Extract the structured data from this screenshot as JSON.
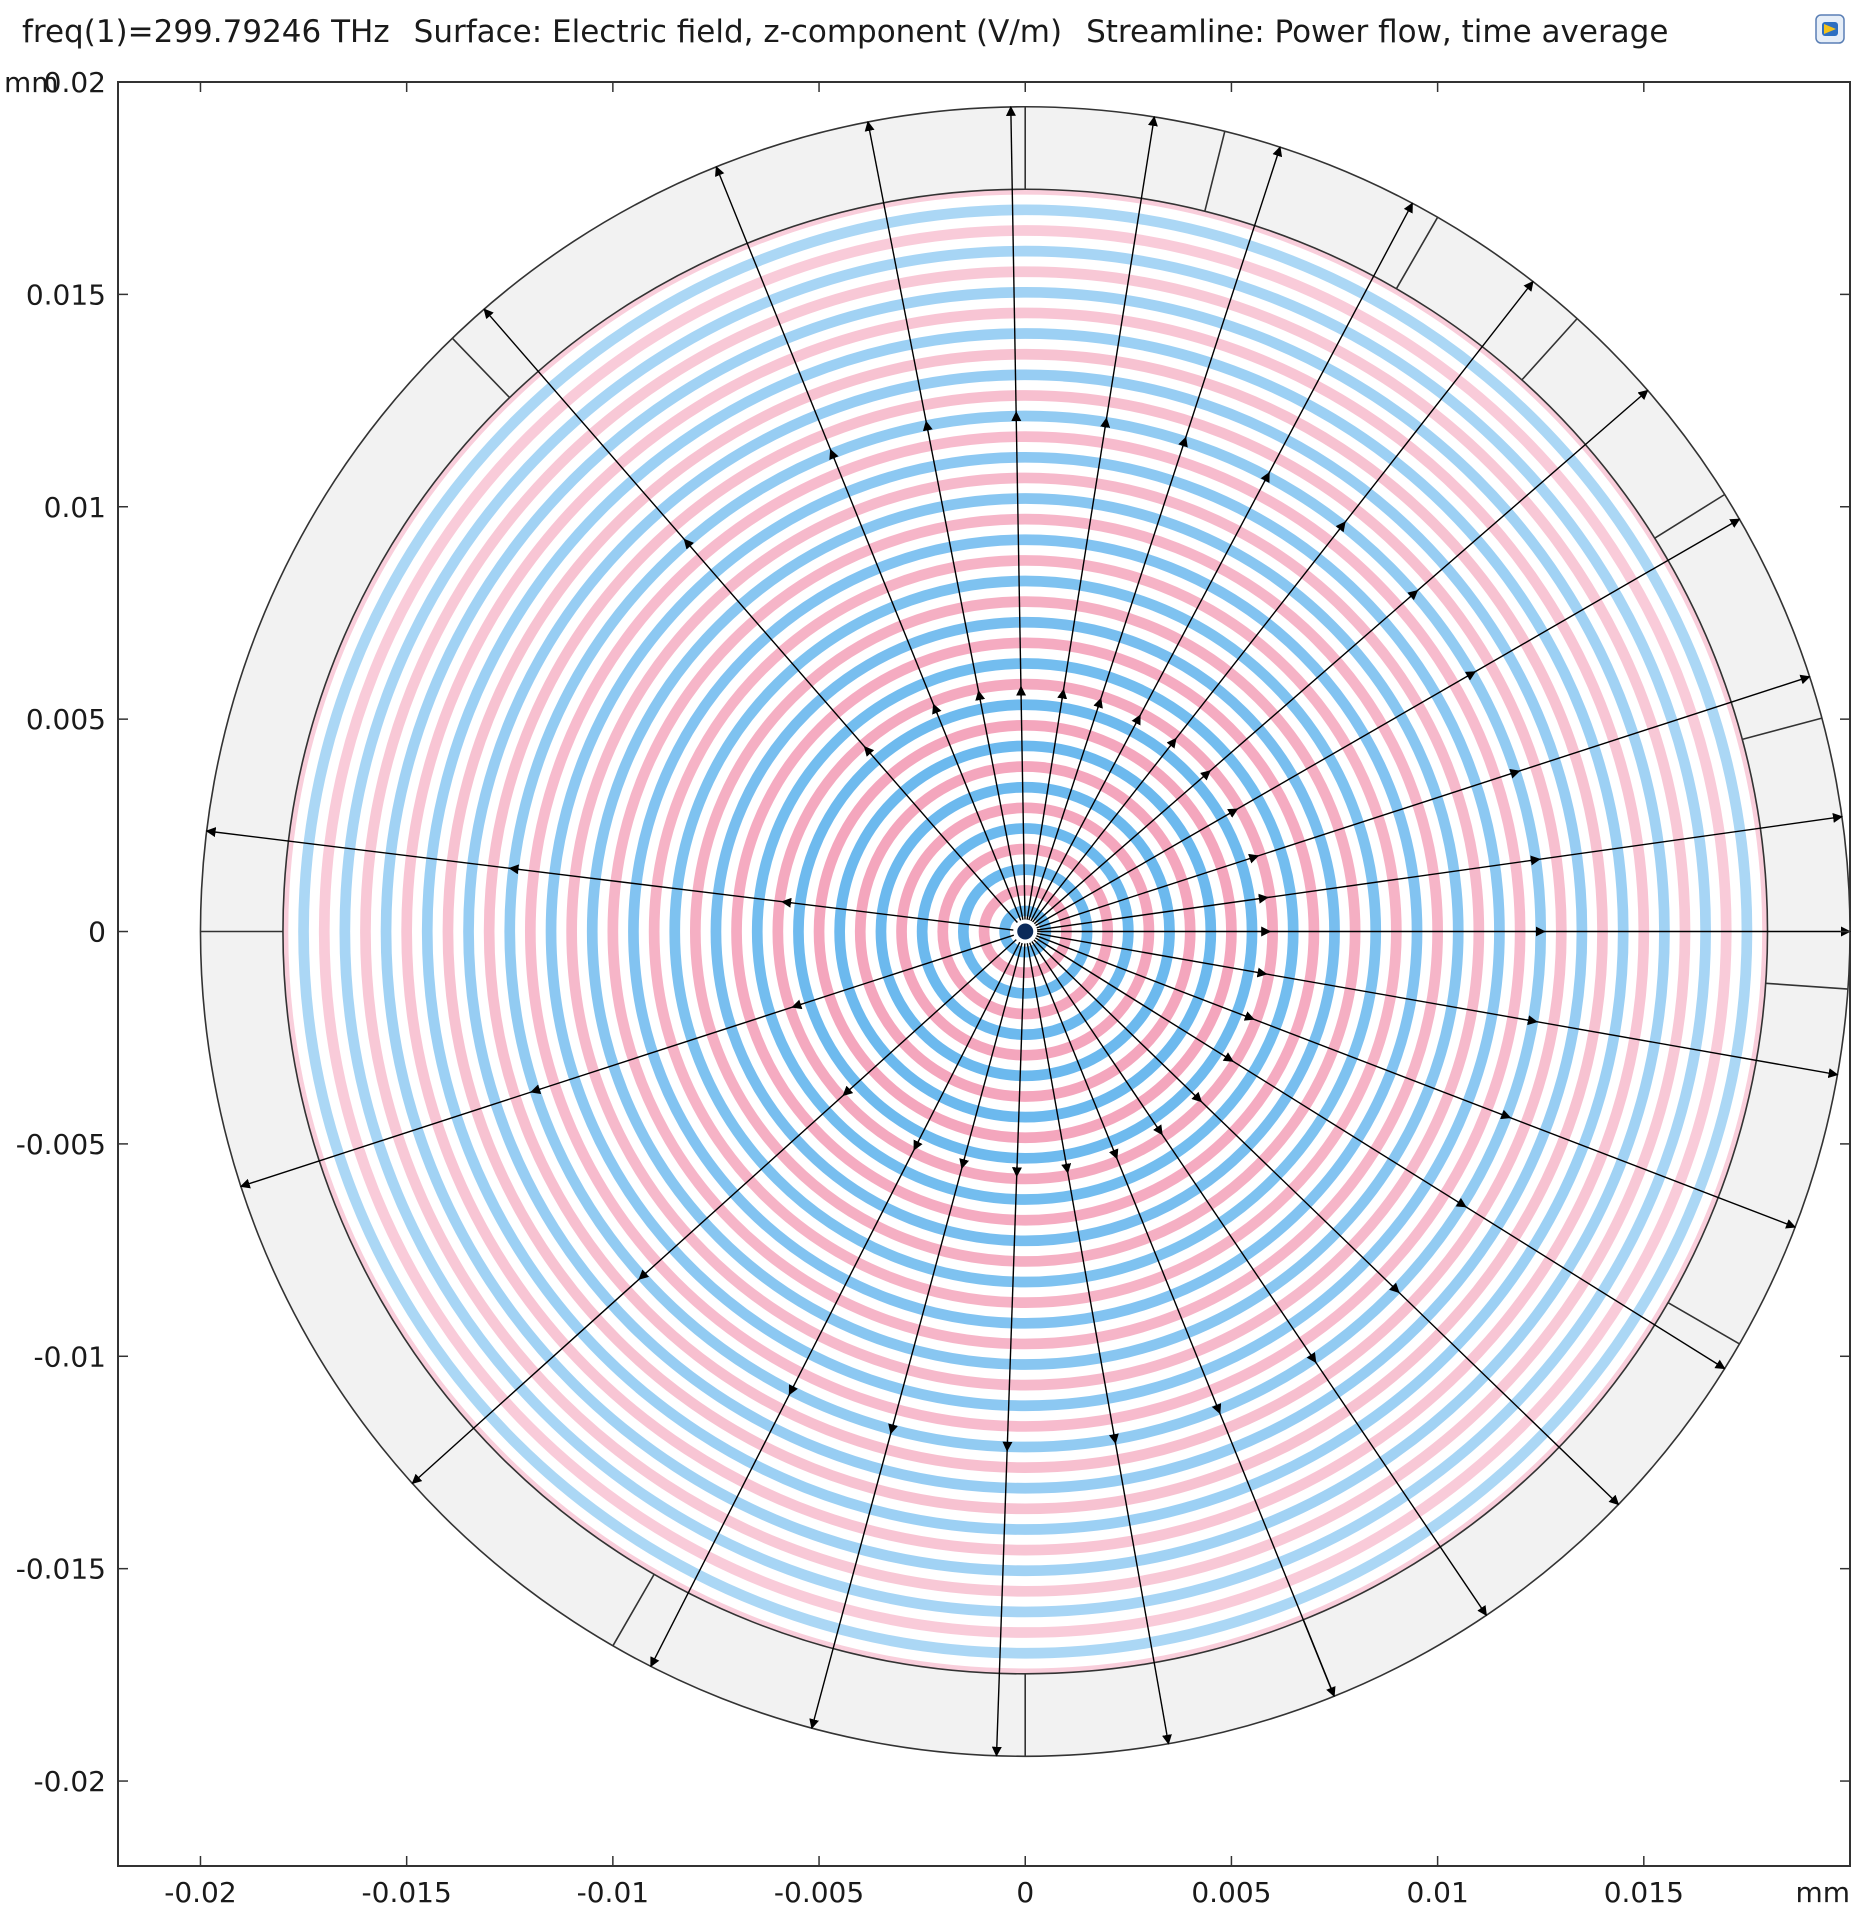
{
  "header": {
    "freq_label": "freq(1)=299.79246 THz",
    "surface_label": "Surface: Electric field, z-component (V/m)",
    "streamline_label": "Streamline: Power flow, time average"
  },
  "icons": {
    "corner": "comsol-plot-icon"
  },
  "colors": {
    "field_positive": "#f4a6bd",
    "field_negative": "#6cb9ee",
    "pml_region": "#f2f2f2",
    "streamline": "#000000",
    "frame": "#333333"
  },
  "chart_data": {
    "type": "heatmap",
    "plot_kind": "surface + streamline",
    "x_unit": "mm",
    "y_unit": "mm",
    "xlim": [
      -0.022,
      0.02
    ],
    "ylim": [
      -0.022,
      0.02
    ],
    "x_ticks": [
      "-0.02",
      "-0.015",
      "-0.01",
      "-0.005",
      "0",
      "0.005",
      "0.01",
      "0.015"
    ],
    "y_ticks": [
      "0.02",
      "0.015",
      "0.01",
      "0.005",
      "0",
      "-0.005",
      "-0.01",
      "-0.015",
      "-0.02"
    ],
    "x_tick_values": [
      -0.02,
      -0.015,
      -0.01,
      -0.005,
      0,
      0.005,
      0.01,
      0.015
    ],
    "y_tick_values": [
      0.02,
      0.015,
      0.01,
      0.005,
      0,
      -0.005,
      -0.01,
      -0.015,
      -0.02
    ],
    "domain": {
      "center": [
        0,
        0
      ],
      "inner_radius": 0.018,
      "outer_radius": 0.02,
      "outer_region": "perfectly matched layer (grey)",
      "pml_sector_angles_deg": [
        90,
        134,
        180,
        240,
        292,
        270,
        330,
        356,
        15,
        32,
        48,
        60,
        76
      ]
    },
    "surface": {
      "quantity": "Electric field, z-component (V/m)",
      "pattern": "concentric rings",
      "wavelength": 0.001,
      "colormap": [
        "#6cb9ee",
        "#ffffff",
        "#f4a6bd"
      ]
    },
    "streamlines": {
      "quantity": "Power flow, time average",
      "source": [
        0,
        0
      ],
      "direction": "outward",
      "angles_deg": [
        0,
        8,
        18,
        30,
        41,
        52,
        62,
        72,
        81,
        91,
        101,
        112,
        131,
        173,
        198,
        222,
        243,
        255,
        268,
        280,
        292,
        304,
        316,
        328,
        339,
        350
      ]
    }
  }
}
